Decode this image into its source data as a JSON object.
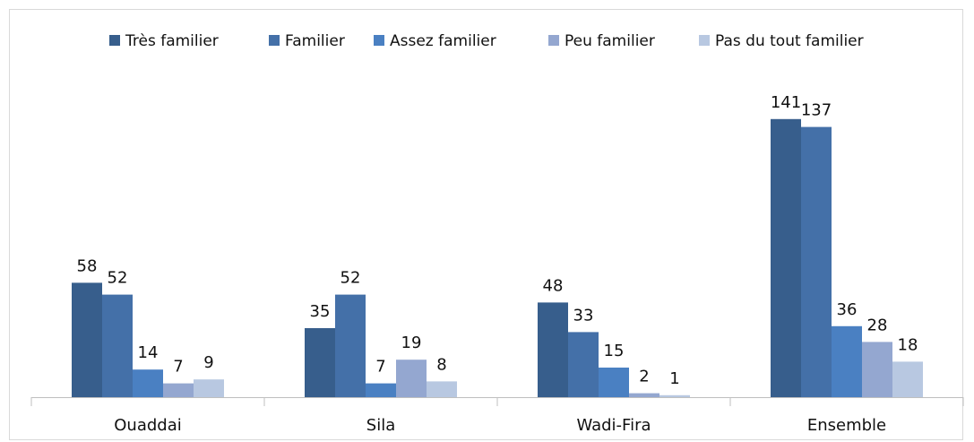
{
  "chart_data": {
    "type": "bar",
    "categories": [
      "Ouaddai",
      "Sila",
      "Wadi-Fira",
      "Ensemble"
    ],
    "series": [
      {
        "name": "Très familier",
        "color": "#375e8c",
        "values": [
          58,
          35,
          48,
          141
        ]
      },
      {
        "name": "Familier",
        "color": "#4470a8",
        "values": [
          52,
          52,
          33,
          137
        ]
      },
      {
        "name": "Assez familier",
        "color": "#4a80c2",
        "values": [
          14,
          7,
          15,
          36
        ]
      },
      {
        "name": "Peu familier",
        "color": "#94a7d0",
        "values": [
          7,
          19,
          2,
          28
        ]
      },
      {
        "name": "Pas du tout familier",
        "color": "#b8c8e1",
        "values": [
          9,
          8,
          1,
          18
        ]
      }
    ],
    "ylim": [
      0,
      160
    ],
    "legend": "top"
  }
}
